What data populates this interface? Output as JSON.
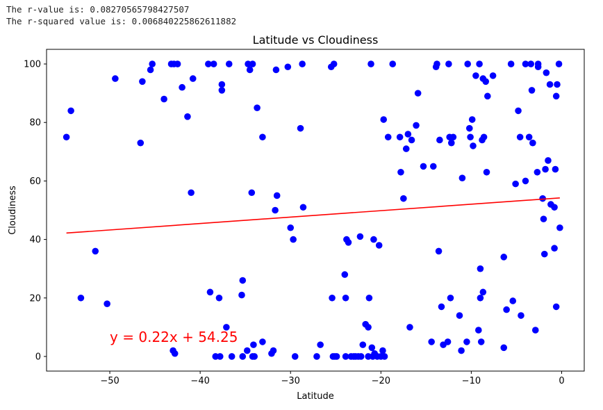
{
  "console": {
    "line1": "The r-value is: 0.08270565798427507",
    "line2": "The r-squared value is: 0.006840225862611882"
  },
  "chart_data": {
    "type": "scatter",
    "title": "Latitude vs Cloudiness",
    "xlabel": "Latitude",
    "ylabel": "Cloudiness",
    "xlim": [
      -57,
      2.5
    ],
    "ylim": [
      -5,
      105
    ],
    "xticks": [
      -50,
      -40,
      -30,
      -20,
      -10,
      0
    ],
    "yticks": [
      0,
      20,
      40,
      60,
      80,
      100
    ],
    "grid": false,
    "point_color": "#0000ff",
    "line_color": "#ff0000",
    "regression": {
      "slope": 0.22,
      "intercept": 54.25,
      "x_range": [
        -54.8,
        -0.2
      ]
    },
    "annotation": {
      "text": "y = 0.22x + 54.25",
      "x": -50,
      "y": 5,
      "color": "#ff0000"
    },
    "points": [
      [
        -54.8,
        75
      ],
      [
        -54.3,
        84
      ],
      [
        -53.2,
        20
      ],
      [
        -51.6,
        36
      ],
      [
        -50.3,
        18
      ],
      [
        -49.4,
        95
      ],
      [
        -46.6,
        73
      ],
      [
        -46.4,
        94
      ],
      [
        -45.5,
        98
      ],
      [
        -45.3,
        100
      ],
      [
        -44.0,
        88
      ],
      [
        -43.2,
        100
      ],
      [
        -43.0,
        2
      ],
      [
        -42.9,
        100
      ],
      [
        -42.8,
        1
      ],
      [
        -42.5,
        100
      ],
      [
        -42.0,
        92
      ],
      [
        -41.4,
        82
      ],
      [
        -41.0,
        56
      ],
      [
        -40.8,
        95
      ],
      [
        -39.1,
        100
      ],
      [
        -38.9,
        22
      ],
      [
        -38.5,
        100
      ],
      [
        -38.3,
        0
      ],
      [
        -37.9,
        20
      ],
      [
        -37.8,
        0
      ],
      [
        -37.6,
        93
      ],
      [
        -37.6,
        91
      ],
      [
        -37.1,
        10
      ],
      [
        -36.8,
        100
      ],
      [
        -36.5,
        0
      ],
      [
        -35.4,
        21
      ],
      [
        -35.3,
        26
      ],
      [
        -35.3,
        0
      ],
      [
        -34.8,
        2
      ],
      [
        -34.7,
        100
      ],
      [
        -34.5,
        98
      ],
      [
        -34.3,
        56
      ],
      [
        -34.2,
        100
      ],
      [
        -34.2,
        0
      ],
      [
        -34.1,
        4
      ],
      [
        -34.0,
        0
      ],
      [
        -33.7,
        85
      ],
      [
        -33.1,
        75
      ],
      [
        -33.1,
        5
      ],
      [
        -32.1,
        1
      ],
      [
        -31.9,
        2
      ],
      [
        -31.7,
        50
      ],
      [
        -31.6,
        98
      ],
      [
        -31.5,
        55
      ],
      [
        -30.3,
        99
      ],
      [
        -30.0,
        44
      ],
      [
        -29.7,
        40
      ],
      [
        -29.5,
        0
      ],
      [
        -28.9,
        78
      ],
      [
        -28.7,
        100
      ],
      [
        -28.6,
        51
      ],
      [
        -27.1,
        0
      ],
      [
        -26.7,
        4
      ],
      [
        -25.5,
        99
      ],
      [
        -25.4,
        20
      ],
      [
        -25.3,
        0
      ],
      [
        -25.2,
        100
      ],
      [
        -25.1,
        0
      ],
      [
        -24.9,
        0
      ],
      [
        -24.0,
        28
      ],
      [
        -23.9,
        0
      ],
      [
        -23.9,
        20
      ],
      [
        -23.8,
        40
      ],
      [
        -23.6,
        39
      ],
      [
        -23.3,
        0
      ],
      [
        -23.0,
        0
      ],
      [
        -22.8,
        0
      ],
      [
        -22.5,
        0
      ],
      [
        -22.3,
        41
      ],
      [
        -22.2,
        0
      ],
      [
        -22.0,
        4
      ],
      [
        -21.7,
        11
      ],
      [
        -21.4,
        10
      ],
      [
        -21.4,
        0
      ],
      [
        -21.3,
        20
      ],
      [
        -21.1,
        100
      ],
      [
        -21.0,
        3
      ],
      [
        -20.9,
        0
      ],
      [
        -20.8,
        40
      ],
      [
        -20.7,
        1
      ],
      [
        -20.4,
        0
      ],
      [
        -20.2,
        38
      ],
      [
        -20.0,
        0
      ],
      [
        -19.8,
        2
      ],
      [
        -19.7,
        81
      ],
      [
        -19.6,
        0
      ],
      [
        -19.2,
        75
      ],
      [
        -18.7,
        100
      ],
      [
        -17.9,
        75
      ],
      [
        -17.8,
        63
      ],
      [
        -17.5,
        54
      ],
      [
        -17.2,
        71
      ],
      [
        -17.0,
        76
      ],
      [
        -16.8,
        10
      ],
      [
        -16.6,
        74
      ],
      [
        -16.1,
        79
      ],
      [
        -15.9,
        90
      ],
      [
        -15.3,
        65
      ],
      [
        -14.4,
        5
      ],
      [
        -14.2,
        65
      ],
      [
        -13.9,
        99
      ],
      [
        -13.8,
        100
      ],
      [
        -13.6,
        36
      ],
      [
        -13.5,
        74
      ],
      [
        -13.3,
        17
      ],
      [
        -13.1,
        4
      ],
      [
        -12.6,
        5
      ],
      [
        -12.5,
        100
      ],
      [
        -12.4,
        75
      ],
      [
        -12.3,
        20
      ],
      [
        -12.2,
        73
      ],
      [
        -12.0,
        75
      ],
      [
        -11.3,
        14
      ],
      [
        -11.1,
        2
      ],
      [
        -11.0,
        61
      ],
      [
        -10.5,
        5
      ],
      [
        -10.4,
        100
      ],
      [
        -10.2,
        78
      ],
      [
        -10.1,
        75
      ],
      [
        -9.9,
        81
      ],
      [
        -9.8,
        72
      ],
      [
        -9.5,
        96
      ],
      [
        -9.2,
        9
      ],
      [
        -9.1,
        100
      ],
      [
        -9.0,
        30
      ],
      [
        -9.0,
        20
      ],
      [
        -8.9,
        5
      ],
      [
        -8.8,
        74
      ],
      [
        -8.7,
        95
      ],
      [
        -8.7,
        22
      ],
      [
        -8.6,
        75
      ],
      [
        -8.4,
        94
      ],
      [
        -8.3,
        63
      ],
      [
        -8.2,
        89
      ],
      [
        -7.6,
        96
      ],
      [
        -6.4,
        34
      ],
      [
        -6.4,
        3
      ],
      [
        -6.1,
        16
      ],
      [
        -5.6,
        100
      ],
      [
        -5.4,
        19
      ],
      [
        -5.1,
        59
      ],
      [
        -4.8,
        84
      ],
      [
        -4.6,
        75
      ],
      [
        -4.5,
        14
      ],
      [
        -4.0,
        100
      ],
      [
        -4.0,
        60
      ],
      [
        -3.6,
        75
      ],
      [
        -3.4,
        100
      ],
      [
        -3.3,
        91
      ],
      [
        -3.2,
        73
      ],
      [
        -2.9,
        9
      ],
      [
        -2.7,
        63
      ],
      [
        -2.6,
        100
      ],
      [
        -2.6,
        99
      ],
      [
        -2.1,
        54
      ],
      [
        -2.0,
        47
      ],
      [
        -1.9,
        35
      ],
      [
        -1.8,
        64
      ],
      [
        -1.7,
        97
      ],
      [
        -1.5,
        67
      ],
      [
        -1.3,
        93
      ],
      [
        -1.2,
        52
      ],
      [
        -0.8,
        37
      ],
      [
        -0.8,
        51
      ],
      [
        -0.7,
        64
      ],
      [
        -0.6,
        17
      ],
      [
        -0.6,
        89
      ],
      [
        -0.5,
        93
      ],
      [
        -0.3,
        100
      ],
      [
        -0.2,
        44
      ]
    ]
  }
}
